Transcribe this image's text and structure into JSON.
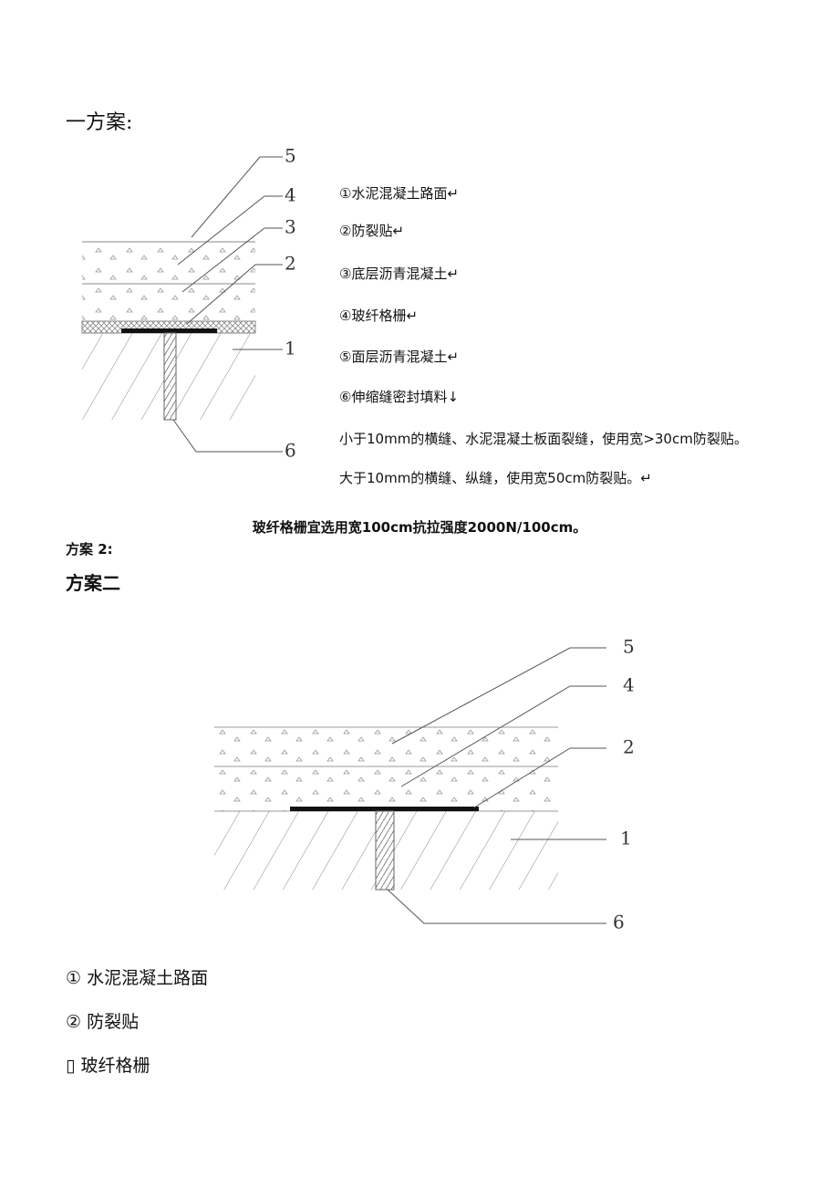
{
  "section1": {
    "title": "一方案:",
    "diagram_labels": [
      "5",
      "4",
      "3",
      "2",
      "1",
      "6"
    ],
    "legend": [
      "①水泥混凝土路面↵",
      "②防裂贴↵",
      "③底层沥青混凝土↵",
      "④玻纤格栅↵",
      "⑤面层沥青混凝土↵",
      "⑥伸缩缝密封填料↓"
    ],
    "notes": [
      "小于10mm的横缝、水泥混凝土板面裂缝，使用宽>30cm防裂贴。",
      "大于10mm的横缝、纵缝，使用宽50cm防裂贴。↵"
    ],
    "emphasis": "玻纤格栅宜选用宽100cm抗拉强度2000N/100cm。"
  },
  "section2": {
    "subtitle": "方案 2:",
    "title": "方案二",
    "diagram_labels": [
      "5",
      "4",
      "2",
      "1",
      "6"
    ],
    "list": [
      "①  水泥混凝土路面",
      "②  防裂贴",
      "▯  玻纤格栅"
    ]
  }
}
